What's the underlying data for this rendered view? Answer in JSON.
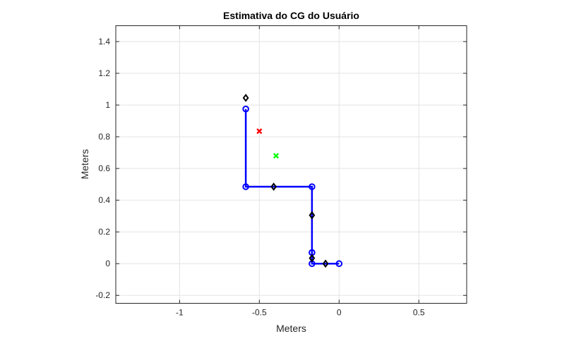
{
  "chart_data": {
    "type": "line",
    "title": "Estimativa do CG do Usuário",
    "xlabel": "Meters",
    "ylabel": "Meters",
    "xlim": [
      -1.4,
      0.8
    ],
    "ylim": [
      -0.25,
      1.5
    ],
    "xticks": [
      -1,
      -0.5,
      0,
      0.5
    ],
    "xtick_labels": [
      "-1",
      "-0.5",
      "0",
      "0.5"
    ],
    "yticks": [
      -0.2,
      0,
      0.2,
      0.4,
      0.6,
      0.8,
      1,
      1.2,
      1.4
    ],
    "ytick_labels": [
      "-0.2",
      "0",
      "0.2",
      "0.4",
      "0.6",
      "0.8",
      "1",
      "1.2",
      "1.4"
    ],
    "grid": true,
    "series": [
      {
        "type": "line-markers",
        "color": "#0000ff",
        "marker": "circle",
        "x": [
          0,
          -0.17,
          -0.17,
          -0.17,
          -0.585,
          -0.585
        ],
        "y": [
          0,
          0,
          0.07,
          0.485,
          0.485,
          0.975
        ]
      },
      {
        "type": "markers",
        "color": "#000000",
        "marker": "diamond",
        "x": [
          -0.085,
          -0.17,
          -0.17,
          -0.41,
          -0.585
        ],
        "y": [
          0,
          0.035,
          0.305,
          0.485,
          1.045
        ]
      },
      {
        "type": "markers",
        "color": "#ff0000",
        "marker": "x",
        "x": [
          -0.5
        ],
        "y": [
          0.835
        ]
      },
      {
        "type": "markers",
        "color": "#00ff00",
        "marker": "x",
        "x": [
          -0.395
        ],
        "y": [
          0.68
        ]
      }
    ]
  }
}
